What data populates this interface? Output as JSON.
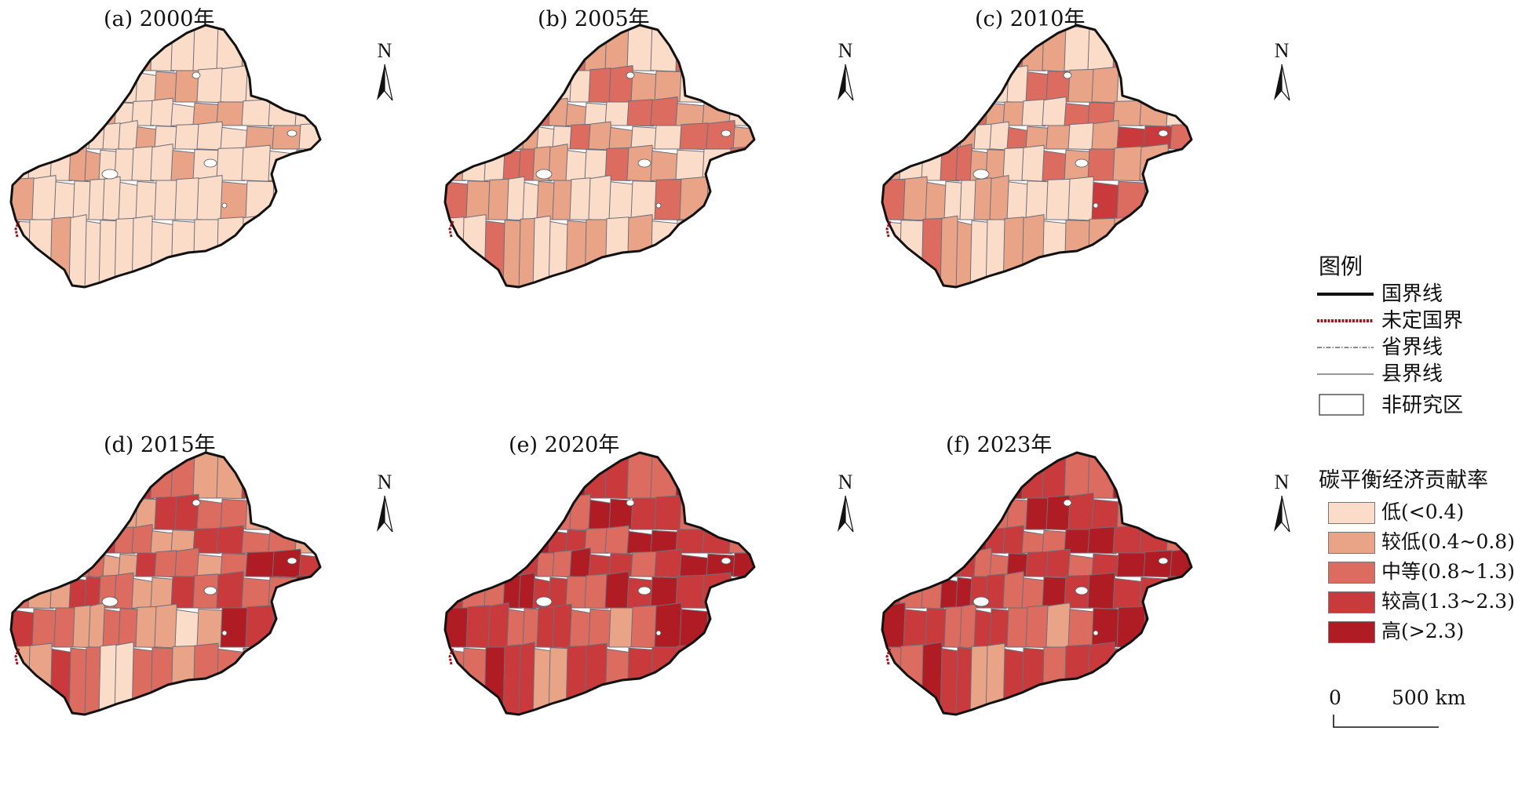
{
  "panels": [
    {
      "title": "(a) 2000年"
    },
    {
      "title": "(b) 2005年"
    },
    {
      "title": "(c) 2010年"
    },
    {
      "title": "(d) 2015年"
    },
    {
      "title": "(e) 2020年"
    },
    {
      "title": "(f) 2023年"
    }
  ],
  "north_label": "N",
  "legend": {
    "title": "图例",
    "lines": [
      {
        "label": "国界线",
        "color": "#111111",
        "style": "solid-thick"
      },
      {
        "label": "未定国界",
        "color": "#a0141e",
        "style": "dashed-thick"
      },
      {
        "label": "省界线",
        "color": "#666666",
        "style": "dash-dot"
      },
      {
        "label": "县界线",
        "color": "#777777",
        "style": "solid-thin"
      }
    ],
    "non_study": {
      "label": "非研究区"
    },
    "classes_title": "碳平衡经济贡献率",
    "classes": [
      {
        "label": "低(<0.4)",
        "color": "#fbdcc8"
      },
      {
        "label": "较低(0.4~0.8)",
        "color": "#e9a488"
      },
      {
        "label": "中等(0.8~1.3)",
        "color": "#db6c5f"
      },
      {
        "label": "较高(1.3~2.3)",
        "color": "#c93a3d"
      },
      {
        "label": "高(>2.3)",
        "color": "#b01c24"
      }
    ]
  },
  "scale": {
    "start": "0",
    "end": "500 km"
  }
}
